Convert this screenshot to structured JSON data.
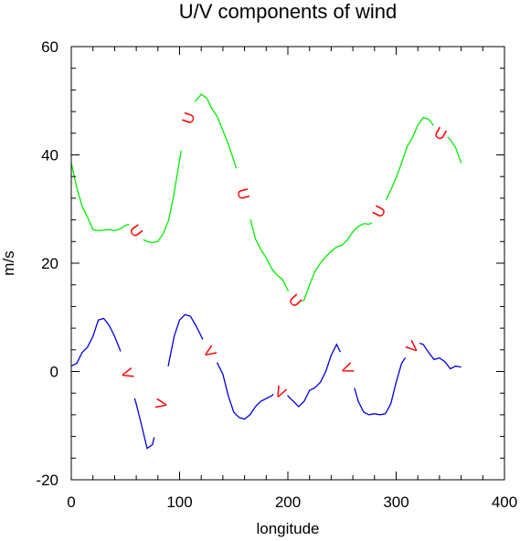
{
  "chart_data": {
    "type": "line",
    "title": "U/V components of wind",
    "xlabel": "longitude",
    "ylabel": "m/s",
    "xlim": [
      0,
      400
    ],
    "ylim": [
      -20,
      60
    ],
    "xticks": [
      0,
      100,
      200,
      300,
      400
    ],
    "xtick_labels": [
      "0",
      "100",
      "200",
      "300",
      "400"
    ],
    "yticks": [
      -20,
      0,
      20,
      40,
      60
    ],
    "ytick_labels": [
      "-20",
      "0",
      "20",
      "40",
      "60"
    ],
    "grid": false,
    "legend": "none",
    "series": [
      {
        "name": "U",
        "color": "#00ee00",
        "line_label": "U",
        "x": [
          0,
          5,
          10,
          15,
          20,
          25,
          30,
          35,
          40,
          45,
          50,
          55,
          60,
          65,
          70,
          75,
          80,
          85,
          90,
          95,
          100,
          105,
          110,
          115,
          120,
          125,
          130,
          135,
          140,
          145,
          150,
          155,
          160,
          165,
          170,
          175,
          180,
          185,
          190,
          195,
          200,
          205,
          210,
          215,
          220,
          225,
          230,
          235,
          240,
          245,
          250,
          255,
          260,
          265,
          270,
          275,
          280,
          285,
          290,
          295,
          300,
          305,
          310,
          315,
          320,
          325,
          330,
          335,
          340,
          345,
          350,
          355,
          360
        ],
        "values": [
          38.5,
          34,
          30.5,
          28.5,
          26.2,
          26,
          26.1,
          26.2,
          26.0,
          26.3,
          27.0,
          27.2,
          26.0,
          24.5,
          24.0,
          23.8,
          24.0,
          25.5,
          28,
          33,
          39,
          45,
          48,
          50,
          51.2,
          50.5,
          48.5,
          47,
          44.5,
          42,
          39,
          36,
          32,
          28.5,
          24.5,
          22.5,
          21,
          19,
          17.8,
          17,
          15,
          13.5,
          12.5,
          13.2,
          16,
          18.5,
          20,
          21.2,
          22.2,
          23,
          23.3,
          24.3,
          25.8,
          26.8,
          27.3,
          27.2,
          27.8,
          30,
          31.5,
          33.5,
          35.8,
          38.5,
          41.5,
          43.2,
          45.5,
          46.9,
          46.6,
          45.3,
          44,
          43.8,
          42.8,
          41.3,
          38.5
        ]
      },
      {
        "name": "V",
        "color": "#0000dd",
        "line_label": "V",
        "x": [
          0,
          5,
          10,
          15,
          20,
          25,
          30,
          35,
          40,
          45,
          50,
          55,
          60,
          65,
          70,
          75,
          80,
          85,
          90,
          95,
          100,
          105,
          110,
          115,
          120,
          125,
          130,
          135,
          140,
          145,
          150,
          155,
          160,
          165,
          170,
          175,
          180,
          185,
          190,
          195,
          200,
          205,
          210,
          215,
          220,
          225,
          230,
          235,
          240,
          245,
          250,
          255,
          260,
          265,
          270,
          275,
          280,
          285,
          290,
          295,
          300,
          305,
          310,
          315,
          320,
          325,
          330,
          335,
          340,
          345,
          350,
          355,
          360
        ],
        "values": [
          1.0,
          1.5,
          3.5,
          4.5,
          6.5,
          9.5,
          9.8,
          8.5,
          6.5,
          4.0,
          1.0,
          -2.5,
          -6,
          -10,
          -14.2,
          -13.5,
          -9,
          -4,
          1.5,
          6.5,
          9.5,
          10.5,
          10.2,
          8.5,
          6.5,
          4.5,
          3.0,
          1.5,
          -0.5,
          -4.5,
          -7.5,
          -8.5,
          -8.8,
          -8,
          -6.5,
          -5.5,
          -5,
          -4.5,
          -3.5,
          -4,
          -4.5,
          -5.5,
          -6.5,
          -5.5,
          -3.5,
          -3,
          -2,
          0,
          3,
          5,
          3,
          0.5,
          -2,
          -5.5,
          -7.5,
          -8,
          -7.8,
          -8,
          -7.8,
          -6,
          -2,
          1.5,
          3.0,
          4.5,
          5.3,
          5.0,
          3.5,
          2.2,
          2.5,
          1.8,
          0.5,
          1.0,
          0.8
        ]
      }
    ],
    "line_label_positions": [
      {
        "series": "U",
        "x": [
          60,
          108,
          159,
          207,
          284,
          341
        ]
      },
      {
        "series": "V",
        "x": [
          52,
          83,
          128,
          193,
          255,
          315
        ]
      }
    ]
  }
}
